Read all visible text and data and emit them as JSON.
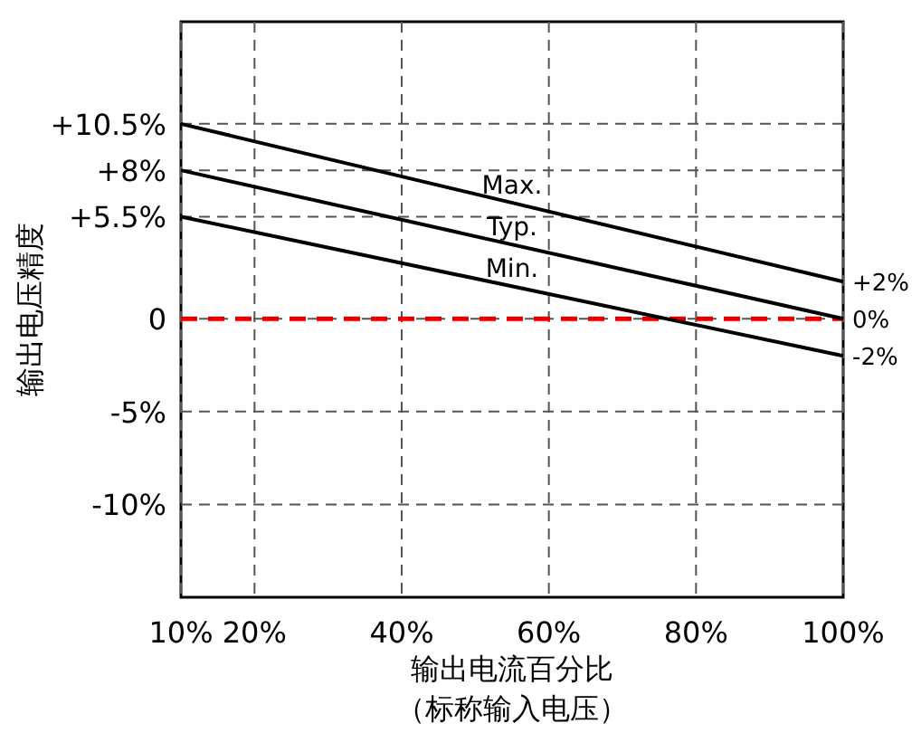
{
  "chart_data": {
    "type": "line",
    "xlabel": "输出电流百分比",
    "annotations": [
      "（标称输入电压）"
    ],
    "ylabel": "输出电压精度",
    "xlim": [
      10,
      100
    ],
    "xticks": [
      {
        "value": 10,
        "label": "10%"
      },
      {
        "value": 20,
        "label": "20%"
      },
      {
        "value": 40,
        "label": "40%"
      },
      {
        "value": 60,
        "label": "60%"
      },
      {
        "value": 80,
        "label": "80%"
      },
      {
        "value": 100,
        "label": "100%"
      }
    ],
    "ylim": [
      -15,
      16
    ],
    "yticks": [
      {
        "value": 10.5,
        "label": "+10.5%"
      },
      {
        "value": 8,
        "label": "+8%"
      },
      {
        "value": 5.5,
        "label": "+5.5%"
      },
      0,
      {
        "value": -5,
        "label": "-5%"
      },
      {
        "value": -10,
        "label": "-10%"
      }
    ],
    "grid": true,
    "marker": "none",
    "x": [
      10,
      100
    ],
    "line_style": "solid",
    "series": [
      {
        "name": "Max.",
        "color": "#000000",
        "values": [
          10.5,
          2
        ],
        "value_labels": [
          null,
          "+2%"
        ]
      },
      {
        "name": "Typ.",
        "color": "#000000",
        "values": [
          8,
          0
        ],
        "value_labels": [
          null,
          "0%"
        ]
      },
      {
        "name": "Min.",
        "color": "#000000",
        "values": [
          5.5,
          -2
        ],
        "value_labels": [
          null,
          "-2%"
        ]
      }
    ],
    "ref_lines": [
      {
        "axis": "y",
        "value": 0,
        "color": "#e00000",
        "line_style": "dashed"
      }
    ]
  }
}
